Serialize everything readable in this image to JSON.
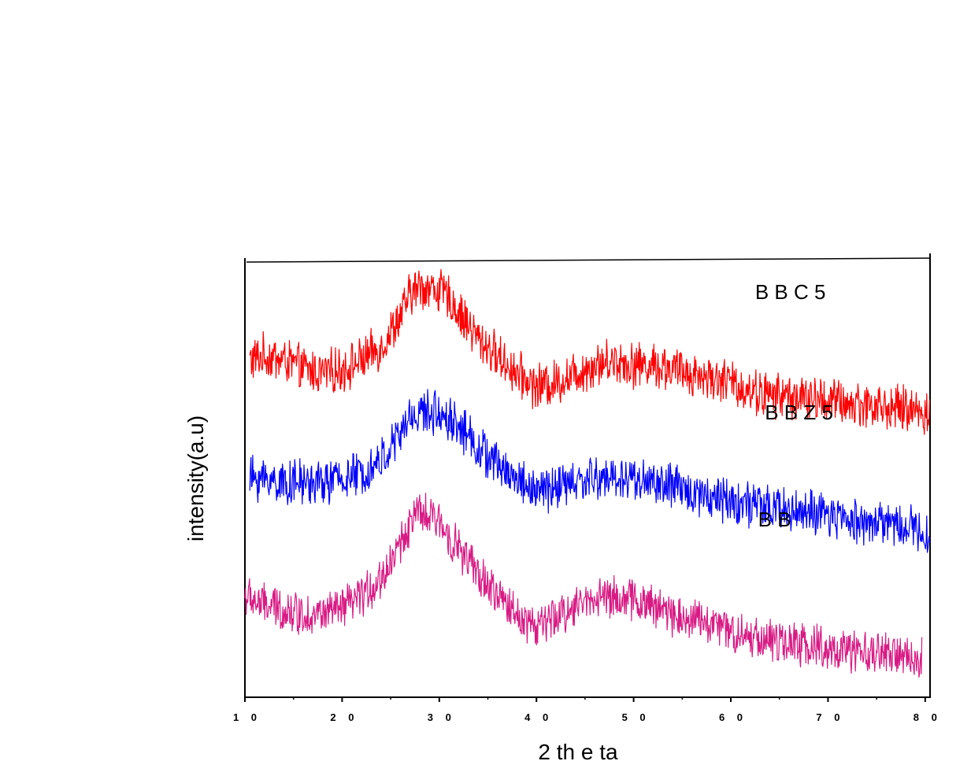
{
  "chart_data": {
    "type": "line",
    "xlabel": "2 th e ta",
    "ylabel": "intensity(a.u)",
    "xlim": [
      10,
      80.5
    ],
    "x_ticks": [
      10,
      20,
      30,
      40,
      50,
      60,
      70,
      80
    ],
    "x_tick_labels": [
      "1 0",
      "2 0",
      "3 0",
      "4 0",
      "5 0",
      "6 0",
      "7 0",
      "8 0"
    ],
    "ylim": [
      0,
      10
    ],
    "grid": false,
    "y_ticks_shown": false,
    "series": [
      {
        "name": "B B C 5",
        "color": "#ff0000",
        "noise": 0.45,
        "x": [
          10.5,
          12,
          14,
          16,
          18,
          20,
          22,
          24,
          26,
          27,
          28,
          29,
          30,
          31,
          32,
          33,
          34,
          36,
          38,
          40,
          42,
          44,
          46,
          48,
          50,
          52,
          54,
          56,
          58,
          60,
          62,
          64,
          66,
          68,
          70,
          72,
          74,
          76,
          78,
          80.5
        ],
        "y": [
          7.7,
          7.8,
          7.7,
          7.5,
          7.4,
          7.5,
          7.7,
          8.0,
          8.7,
          9.2,
          9.4,
          9.35,
          9.3,
          9.1,
          8.8,
          8.5,
          8.2,
          7.8,
          7.4,
          7.1,
          7.2,
          7.4,
          7.6,
          7.7,
          7.6,
          7.6,
          7.5,
          7.4,
          7.3,
          7.2,
          7.0,
          6.9,
          6.9,
          6.8,
          6.8,
          6.7,
          6.7,
          6.6,
          6.6,
          6.5
        ]
      },
      {
        "name": "B B Z 5",
        "color": "#0000ff",
        "noise": 0.45,
        "x": [
          10.5,
          12,
          14,
          16,
          18,
          20,
          22,
          24,
          26,
          27,
          28,
          29,
          30,
          31,
          32,
          33,
          34,
          36,
          38,
          40,
          42,
          44,
          46,
          48,
          50,
          52,
          54,
          56,
          58,
          60,
          62,
          64,
          66,
          68,
          70,
          72,
          74,
          76,
          78,
          80.5
        ],
        "y": [
          5.0,
          5.0,
          4.9,
          4.9,
          4.9,
          5.0,
          5.1,
          5.4,
          6.0,
          6.4,
          6.5,
          6.5,
          6.5,
          6.4,
          6.2,
          6.0,
          5.7,
          5.3,
          5.0,
          4.7,
          4.8,
          4.9,
          5.0,
          5.0,
          5.0,
          4.9,
          4.8,
          4.7,
          4.6,
          4.5,
          4.4,
          4.3,
          4.3,
          4.2,
          4.1,
          4.1,
          4.0,
          4.0,
          3.9,
          3.8
        ]
      },
      {
        "name": "B B",
        "color": "#d81b84",
        "noise": 0.42,
        "x": [
          10,
          12,
          14,
          16,
          18,
          20,
          22,
          24,
          25,
          26,
          27,
          28,
          29,
          30,
          31,
          32,
          34,
          36,
          38,
          40,
          42,
          44,
          46,
          48,
          50,
          52,
          54,
          56,
          58,
          60,
          62,
          64,
          66,
          68,
          70,
          72,
          74,
          76,
          78,
          79.7
        ],
        "y": [
          2.3,
          2.1,
          2.0,
          1.9,
          1.9,
          2.0,
          2.3,
          2.7,
          3.1,
          3.5,
          4.0,
          4.2,
          4.1,
          4.0,
          3.7,
          3.4,
          2.8,
          2.3,
          1.9,
          1.6,
          1.8,
          2.1,
          2.3,
          2.3,
          2.2,
          2.1,
          1.9,
          1.8,
          1.7,
          1.5,
          1.4,
          1.3,
          1.2,
          1.2,
          1.1,
          1.0,
          1.0,
          1.0,
          0.9,
          0.9
        ]
      }
    ],
    "series_labels": [
      {
        "text": "B  B  C  5",
        "x": 62.5,
        "y": 9.1
      },
      {
        "text": "B  B  Z  5",
        "x": 63.5,
        "y": 6.35
      },
      {
        "text": "B  B",
        "x": 62.8,
        "y": 3.9
      }
    ]
  }
}
